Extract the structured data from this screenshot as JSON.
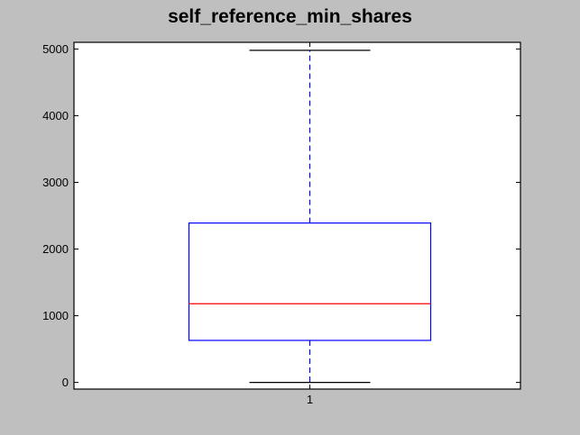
{
  "chart_data": {
    "type": "box",
    "title": "self_reference_min_shares",
    "xlabel": "",
    "ylabel": "",
    "categories": [
      "1"
    ],
    "box": {
      "whisker_low": 0,
      "q1": 630,
      "median": 1180,
      "q3": 2390,
      "whisker_high": 4980
    },
    "ylim": [
      -100,
      5100
    ],
    "yticks": [
      0,
      1000,
      2000,
      3000,
      4000,
      5000
    ],
    "grid": false,
    "colors": {
      "box": "#0000ff",
      "median": "#ff0000",
      "whisker": "#0000ff",
      "cap": "#000000",
      "figure_bg": "#bfbfbf",
      "axes_bg": "#ffffff"
    }
  }
}
